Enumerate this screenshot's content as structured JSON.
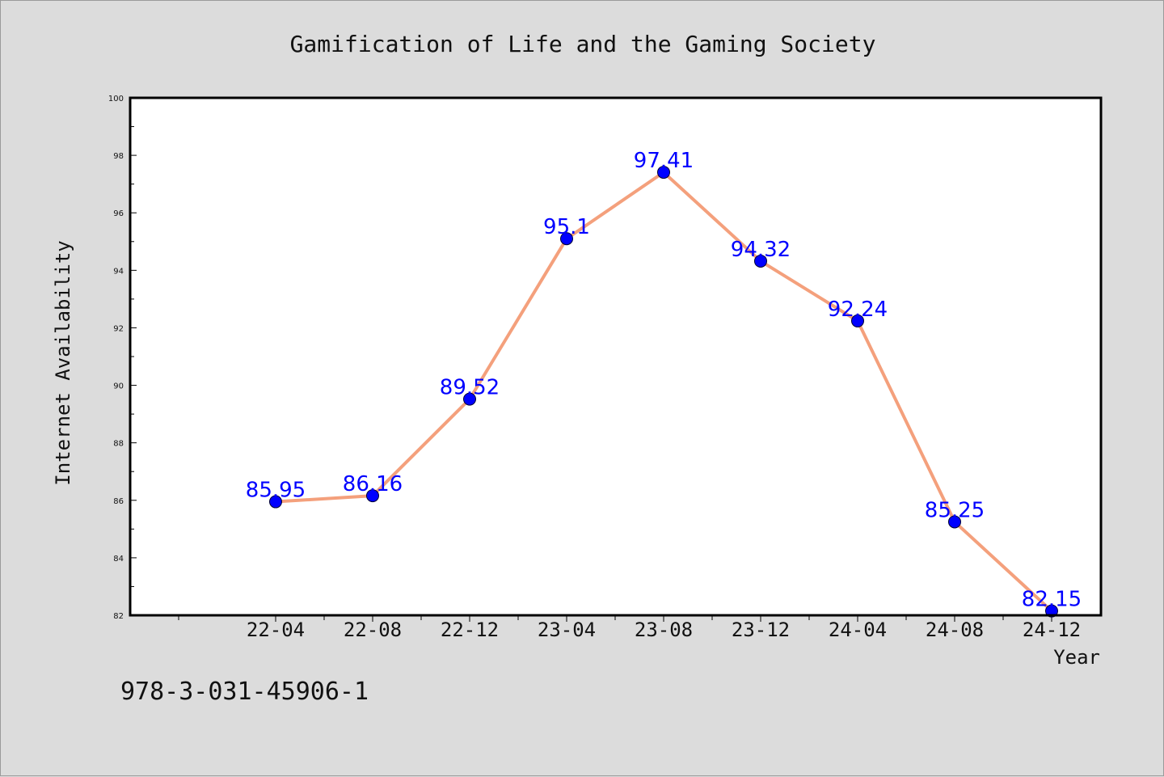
{
  "chart_data": {
    "type": "line",
    "title": "Gamification of Life and the Gaming Society",
    "xlabel": "Year",
    "ylabel": "Internet Availability",
    "x": [
      "22-04",
      "22-08",
      "22-12",
      "23-04",
      "23-08",
      "23-12",
      "24-04",
      "24-08",
      "24-12"
    ],
    "series": [
      {
        "values": [
          85.95,
          86.16,
          89.52,
          95.1,
          97.41,
          94.32,
          92.24,
          85.25,
          82.15
        ],
        "data_labels": [
          "85.95",
          "86.16",
          "89.52",
          "95.1",
          "97.41",
          "94.32",
          "92.24",
          "85.25",
          "82.15"
        ],
        "line_color": "#f4a07c",
        "marker_color": "#0000ff"
      }
    ],
    "yticks": [
      "82",
      "84",
      "86",
      "88",
      "90",
      "92",
      "94",
      "96",
      "98",
      "100"
    ],
    "ylim": [
      82,
      100
    ],
    "grid": false,
    "legend": "none"
  },
  "footnote": "978-3-031-45906-1"
}
